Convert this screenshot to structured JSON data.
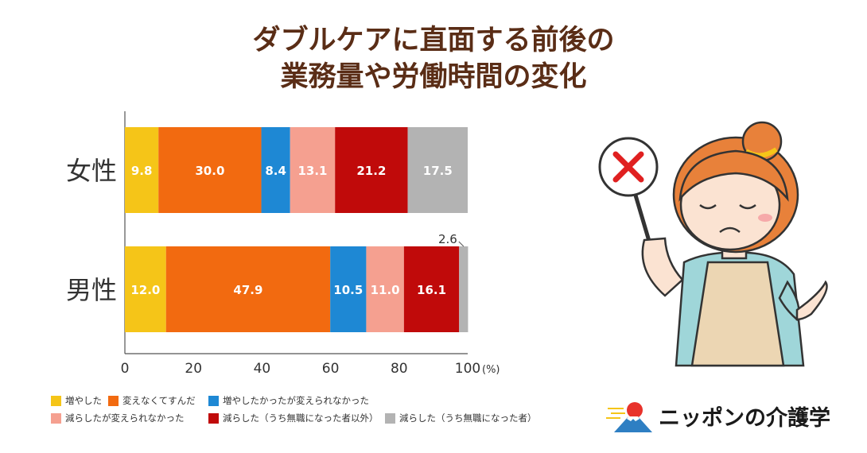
{
  "title_lines": [
    "ダブルケアに直面する前後の",
    "業務量や労働時間の変化"
  ],
  "brand": {
    "name": "ニッポンの介護学"
  },
  "chart_data": {
    "type": "bar",
    "orientation": "horizontal",
    "stacked": true,
    "categories": [
      "女性",
      "男性"
    ],
    "series": [
      {
        "name": "増やした",
        "color": "#f5c518",
        "values": [
          9.8,
          12.0
        ]
      },
      {
        "name": "変えなくてすんだ",
        "color": "#f26a10",
        "values": [
          30.0,
          47.9
        ]
      },
      {
        "name": "増やしたかったが変えられなかった",
        "color": "#1e88d4",
        "values": [
          8.4,
          10.5
        ]
      },
      {
        "name": "減らしたが変えられなかった",
        "color": "#f5a090",
        "values": [
          13.1,
          11.0
        ]
      },
      {
        "name": "減らした（うち無職になった者以外）",
        "color": "#c00a0a",
        "values": [
          21.2,
          16.1
        ]
      },
      {
        "name": "減らした（うち無職になった者）",
        "color": "#b3b3b3",
        "values": [
          17.5,
          2.6
        ]
      }
    ],
    "data_labels": [
      [
        "9.8",
        "30.0",
        "8.4",
        "13.1",
        "21.2",
        "17.5"
      ],
      [
        "12.0",
        "47.9",
        "10.5",
        "11.0",
        "16.1",
        "2.6"
      ]
    ],
    "xlim": [
      0,
      100
    ],
    "x_ticks": [
      "0",
      "20",
      "40",
      "60",
      "80",
      "100"
    ],
    "x_unit": "(%)",
    "legend_position": "bottom",
    "grid": false
  }
}
